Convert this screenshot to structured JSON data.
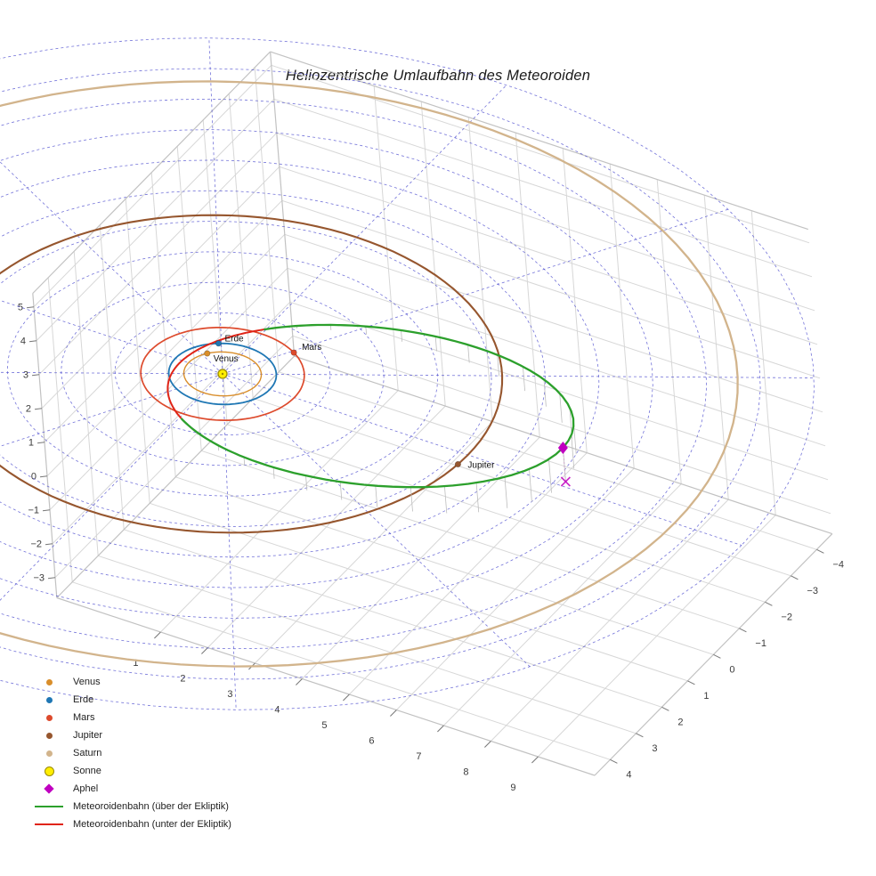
{
  "chart_data": {
    "type": "line",
    "projection": "3d",
    "title": "Heliozentrische Umlaufbahn des Meteoroiden",
    "axes": {
      "xlim": [
        -1.2,
        10.2
      ],
      "ylim": [
        -4.6,
        4.6
      ],
      "zlim": [
        -3.6,
        5.4
      ],
      "x_ticks": [
        1,
        2,
        3,
        4,
        5,
        6,
        7,
        8,
        9
      ],
      "y_ticks": [
        -4,
        -3,
        -2,
        -1,
        0,
        1,
        2,
        3,
        4
      ],
      "z_ticks": [
        -3,
        -2,
        -1,
        0,
        1,
        2,
        3,
        4,
        5
      ],
      "grid": true
    },
    "sun": {
      "label": "Sonne",
      "fill": "#ffee00",
      "edge": "#9a8a00"
    },
    "planets": [
      {
        "name": "Venus",
        "orbit_radius_au": 0.72,
        "azimuth_deg": 218,
        "color": "#d98e2b",
        "line_width": 1.4,
        "label_visible": true,
        "label_offset": [
          7,
          9
        ]
      },
      {
        "name": "Erde",
        "orbit_radius_au": 1.0,
        "azimuth_deg": 237,
        "color": "#1f77b4",
        "line_width": 1.8,
        "label_visible": true,
        "label_offset": [
          7,
          -2
        ]
      },
      {
        "name": "Mars",
        "orbit_radius_au": 1.52,
        "azimuth_deg": -58,
        "color": "#dd4a2c",
        "line_width": 1.7,
        "label_visible": true,
        "label_offset": [
          9,
          -3
        ]
      },
      {
        "name": "Jupiter",
        "orbit_radius_au": 5.2,
        "azimuth_deg": 4,
        "color": "#96562e",
        "line_width": 2.1,
        "label_visible": true,
        "label_offset": [
          11,
          4
        ]
      },
      {
        "name": "Saturn",
        "orbit_radius_au": 9.58,
        "azimuth_deg": 150,
        "color": "#d2b48c",
        "line_width": 2.3,
        "label_visible": false,
        "label_offset": [
          0,
          0
        ]
      }
    ],
    "meteoroid_orbit": {
      "semi_major_axis_au": 4.1,
      "eccentricity": 0.77,
      "perihelion_direction": [
        -0.99,
        0.022,
        -0.138
      ],
      "node_direction": [
        0.022,
        1.0,
        0.0
      ],
      "above_color": "#2ca02c",
      "below_color": "#e02417",
      "above_label": "Meteoroidenbahn (über der Ekliptik)",
      "below_label": "Meteoroidenbahn (unter der Ekliptik)"
    },
    "aphel": {
      "label": "Aphel",
      "color": "#c000c0"
    },
    "ecliptic_grid": {
      "ring_radii_au": [
        1,
        2,
        3,
        4,
        5,
        6,
        7,
        8,
        9,
        10,
        11
      ],
      "spoke_step_deg": 30,
      "max_radius_au": 11,
      "color": "#4444cc"
    },
    "stems": {
      "color": "#bdbdbd"
    }
  },
  "legend": {
    "items": [
      {
        "label": "Venus",
        "marker": "dot",
        "color": "#d98e2b"
      },
      {
        "label": "Erde",
        "marker": "dot",
        "color": "#1f77b4"
      },
      {
        "label": "Mars",
        "marker": "dot",
        "color": "#dd4a2c"
      },
      {
        "label": "Jupiter",
        "marker": "dot",
        "color": "#96562e"
      },
      {
        "label": "Saturn",
        "marker": "dot",
        "color": "#d2b48c"
      },
      {
        "label": "Sonne",
        "marker": "dot-large",
        "color": "#ffee00",
        "edge": "#9a8a00"
      },
      {
        "label": "Aphel",
        "marker": "diamond",
        "color": "#c000c0"
      },
      {
        "label": "Meteoroidenbahn (über der Ekliptik)",
        "marker": "line",
        "color": "#2ca02c"
      },
      {
        "label": "Meteoroidenbahn (unter der Ekliptik)",
        "marker": "line",
        "color": "#e02417"
      }
    ]
  }
}
